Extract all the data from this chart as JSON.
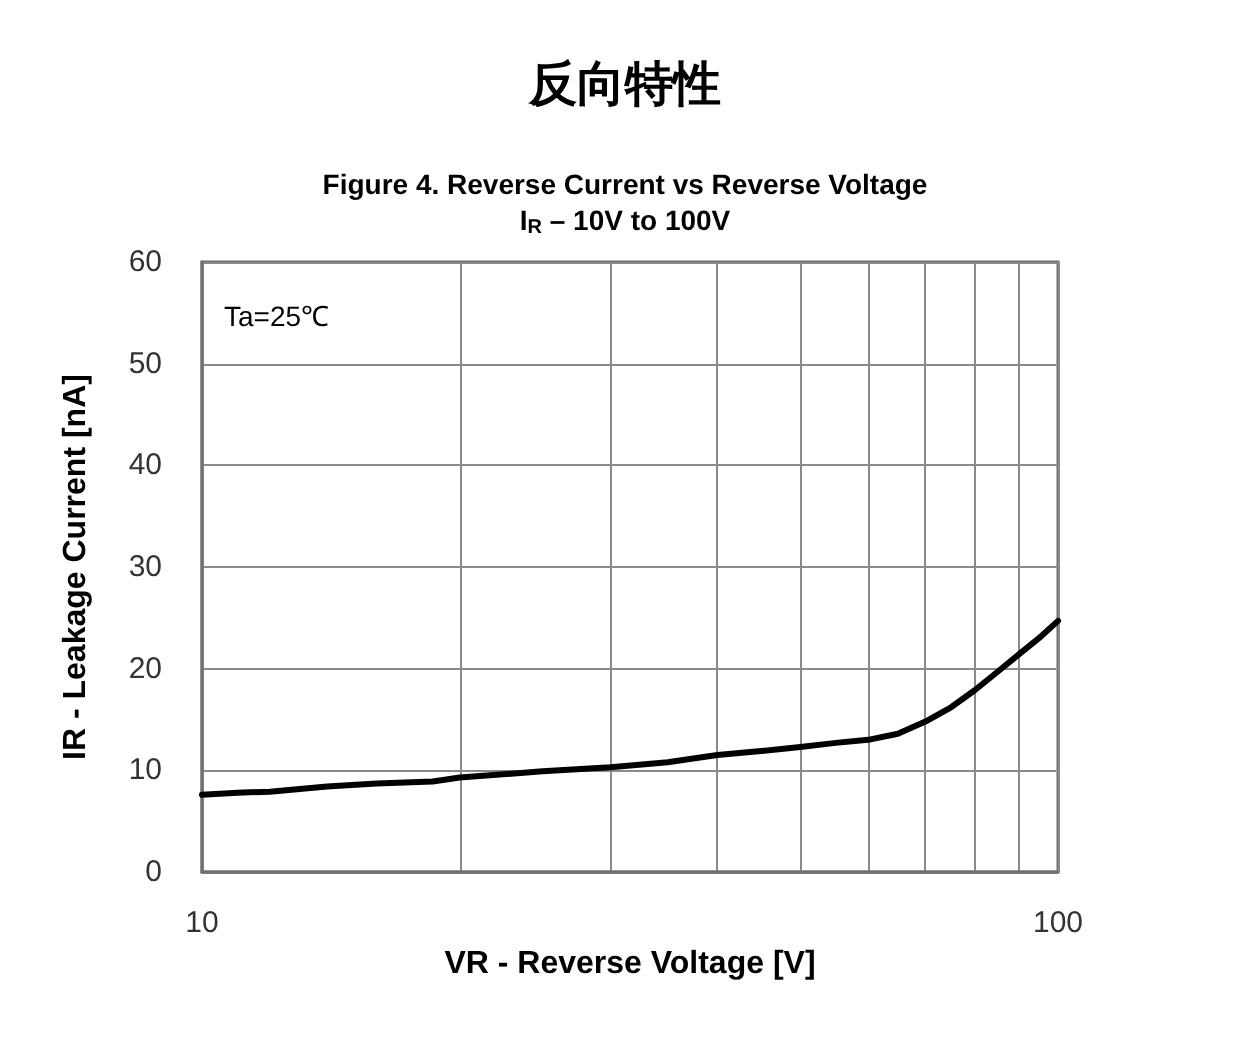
{
  "chart_data": {
    "type": "line",
    "title": "反向特性",
    "subtitle": "Figure 4. Reverse Current vs Reverse Voltage\nI$_{R}$ – 10V to 100V",
    "xlabel": "VR - Reverse Voltage [V]",
    "ylabel": "IR - Leakage Current [nA]",
    "annotations": [
      "Ta=25℃"
    ],
    "x": [
      10,
      11,
      12,
      14,
      16,
      18.6,
      20,
      25,
      30,
      35,
      40,
      45,
      50,
      55,
      60,
      65,
      70,
      75,
      80,
      85,
      90,
      95,
      100
    ],
    "series": [
      {
        "color": "#000000",
        "values": [
          7.6,
          7.8,
          7.9,
          8.4,
          8.7,
          8.9,
          9.3,
          9.9,
          10.3,
          10.8,
          11.5,
          11.9,
          12.3,
          12.7,
          13.0,
          13.6,
          14.8,
          16.2,
          17.9,
          19.7,
          21.4,
          23.0,
          24.7
        ]
      }
    ],
    "log": "x",
    "xlim": [
      10,
      100
    ],
    "xticks": [
      10,
      {
        "value": 20,
        "label": null
      },
      {
        "value": 30,
        "label": null
      },
      {
        "value": 40,
        "label": null
      },
      {
        "value": 50,
        "label": null
      },
      {
        "value": 60,
        "label": null
      },
      {
        "value": 70,
        "label": null
      },
      {
        "value": 80,
        "label": null
      },
      {
        "value": 90,
        "label": null
      },
      100
    ],
    "ylim": [
      0,
      60
    ],
    "yticks": [
      0,
      10,
      20,
      30,
      40,
      50,
      60
    ],
    "grid": true,
    "marker": "none",
    "line_style": "solid"
  }
}
